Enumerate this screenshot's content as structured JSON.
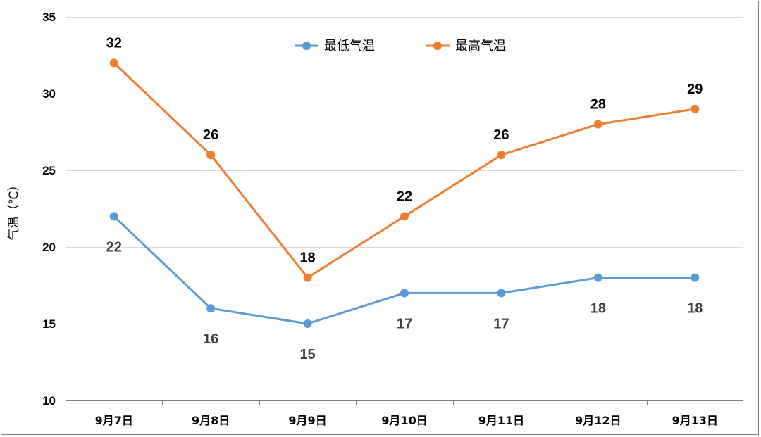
{
  "chart_data": {
    "type": "line",
    "categories": [
      "9月7日",
      "9月8日",
      "9月9日",
      "9月10日",
      "9月11日",
      "9月12日",
      "9月13日"
    ],
    "series": [
      {
        "name": "最低气温",
        "values": [
          22,
          16,
          15,
          17,
          17,
          18,
          18
        ],
        "color": "#5b9bd5"
      },
      {
        "name": "最高气温",
        "values": [
          32,
          26,
          18,
          22,
          26,
          28,
          29
        ],
        "color": "#ed7d31"
      }
    ],
    "title": "",
    "xlabel": "",
    "ylabel": "气温（℃）",
    "ylim": [
      10,
      35
    ],
    "yticks": [
      10,
      15,
      20,
      25,
      30,
      35
    ],
    "grid": true,
    "legend_position": "top-center",
    "data_labels": true
  }
}
